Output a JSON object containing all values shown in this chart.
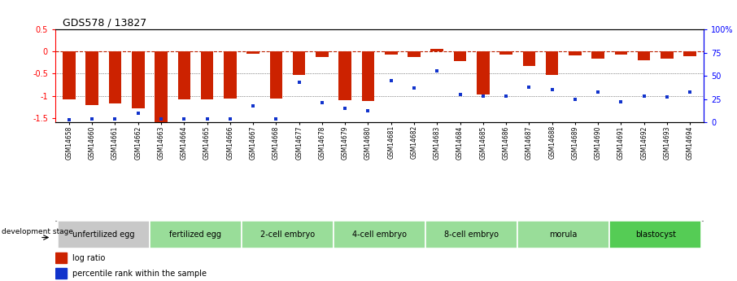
{
  "title": "GDS578 / 13827",
  "samples": [
    "GSM14658",
    "GSM14660",
    "GSM14661",
    "GSM14662",
    "GSM14663",
    "GSM14664",
    "GSM14665",
    "GSM14666",
    "GSM14667",
    "GSM14668",
    "GSM14677",
    "GSM14678",
    "GSM14679",
    "GSM14680",
    "GSM14681",
    "GSM14682",
    "GSM14683",
    "GSM14684",
    "GSM14685",
    "GSM14686",
    "GSM14687",
    "GSM14688",
    "GSM14689",
    "GSM14690",
    "GSM14691",
    "GSM14692",
    "GSM14693",
    "GSM14694"
  ],
  "log_ratio": [
    -1.08,
    -1.22,
    -1.18,
    -1.28,
    -1.62,
    -1.08,
    -1.08,
    -1.06,
    -0.04,
    -1.06,
    -0.52,
    -0.13,
    -1.1,
    -1.12,
    -0.07,
    -0.13,
    0.07,
    -0.22,
    -0.97,
    -0.06,
    -0.33,
    -0.52,
    -0.09,
    -0.16,
    -0.06,
    -0.2,
    -0.16,
    -0.1
  ],
  "percentile_rank": [
    3,
    4,
    4,
    10,
    4,
    4,
    4,
    4,
    18,
    4,
    43,
    21,
    15,
    12,
    45,
    37,
    55,
    30,
    28,
    28,
    38,
    35,
    25,
    33,
    22,
    28,
    27,
    33
  ],
  "stage_groups": [
    {
      "label": "unfertilized egg",
      "start": 0,
      "end": 4,
      "color": "#c8c8c8"
    },
    {
      "label": "fertilized egg",
      "start": 4,
      "end": 8,
      "color": "#99dd99"
    },
    {
      "label": "2-cell embryo",
      "start": 8,
      "end": 12,
      "color": "#99dd99"
    },
    {
      "label": "4-cell embryo",
      "start": 12,
      "end": 16,
      "color": "#99dd99"
    },
    {
      "label": "8-cell embryo",
      "start": 16,
      "end": 20,
      "color": "#99dd99"
    },
    {
      "label": "morula",
      "start": 20,
      "end": 24,
      "color": "#99dd99"
    },
    {
      "label": "blastocyst",
      "start": 24,
      "end": 28,
      "color": "#55cc55"
    }
  ],
  "ylim_left": [
    -1.6,
    0.5
  ],
  "ylim_right": [
    0,
    100
  ],
  "bar_color": "#cc2200",
  "dot_color": "#1133cc",
  "ref_line_color": "#bb2200",
  "grid_color": "#333333",
  "background_color": "#ffffff",
  "stage_label_color": "#c8c8c8"
}
